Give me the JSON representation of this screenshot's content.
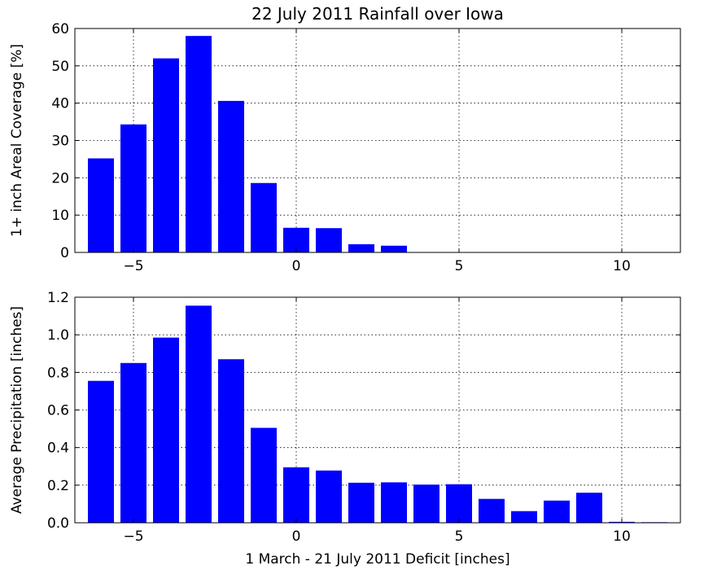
{
  "title": "22 July 2011 Rainfall over Iowa",
  "xlabel": "1 March - 21 July 2011 Deficit [inches]",
  "colors": {
    "bar": "#0000ff",
    "grid": "#000000",
    "axis": "#000000"
  },
  "chart_data": [
    {
      "type": "bar",
      "title": "22 July 2011 Rainfall over Iowa",
      "xlabel": "",
      "ylabel": "1+ inch Areal Coverage [%]",
      "xlim": [
        -6.8,
        11.8
      ],
      "ylim": [
        0,
        60
      ],
      "x_ticks": [
        -5,
        0,
        5,
        10
      ],
      "x_tick_labels": [
        "−5",
        "0",
        "5",
        "10"
      ],
      "y_ticks": [
        0,
        10,
        20,
        30,
        40,
        50,
        60
      ],
      "y_tick_labels": [
        "0",
        "10",
        "20",
        "30",
        "40",
        "50",
        "60"
      ],
      "grid": true,
      "bar_width": 0.8,
      "x": [
        -6,
        -5,
        -4,
        -3,
        -2,
        -1,
        0,
        1,
        2,
        3,
        4,
        5,
        6,
        7,
        8,
        9,
        10,
        11
      ],
      "values": [
        25.2,
        34.3,
        52.0,
        58.0,
        40.6,
        18.6,
        6.6,
        6.5,
        2.2,
        1.8,
        0,
        0,
        0,
        0,
        0,
        0,
        0,
        0
      ]
    },
    {
      "type": "bar",
      "title": "",
      "xlabel": "1 March - 21 July 2011 Deficit [inches]",
      "ylabel": "Average Precipitation [inches]",
      "xlim": [
        -6.8,
        11.8
      ],
      "ylim": [
        0,
        1.2
      ],
      "x_ticks": [
        -5,
        0,
        5,
        10
      ],
      "x_tick_labels": [
        "−5",
        "0",
        "5",
        "10"
      ],
      "y_ticks": [
        0,
        0.2,
        0.4,
        0.6,
        0.8,
        1.0,
        1.2
      ],
      "y_tick_labels": [
        "0.0",
        "0.2",
        "0.4",
        "0.6",
        "0.8",
        "1.0",
        "1.2"
      ],
      "grid": true,
      "bar_width": 0.8,
      "x": [
        -6,
        -5,
        -4,
        -3,
        -2,
        -1,
        0,
        1,
        2,
        3,
        4,
        5,
        6,
        7,
        8,
        9,
        10,
        11
      ],
      "values": [
        0.755,
        0.85,
        0.985,
        1.155,
        0.87,
        0.505,
        0.295,
        0.278,
        0.213,
        0.215,
        0.203,
        0.205,
        0.127,
        0.062,
        0.118,
        0.16,
        0.005,
        0.003
      ]
    }
  ]
}
